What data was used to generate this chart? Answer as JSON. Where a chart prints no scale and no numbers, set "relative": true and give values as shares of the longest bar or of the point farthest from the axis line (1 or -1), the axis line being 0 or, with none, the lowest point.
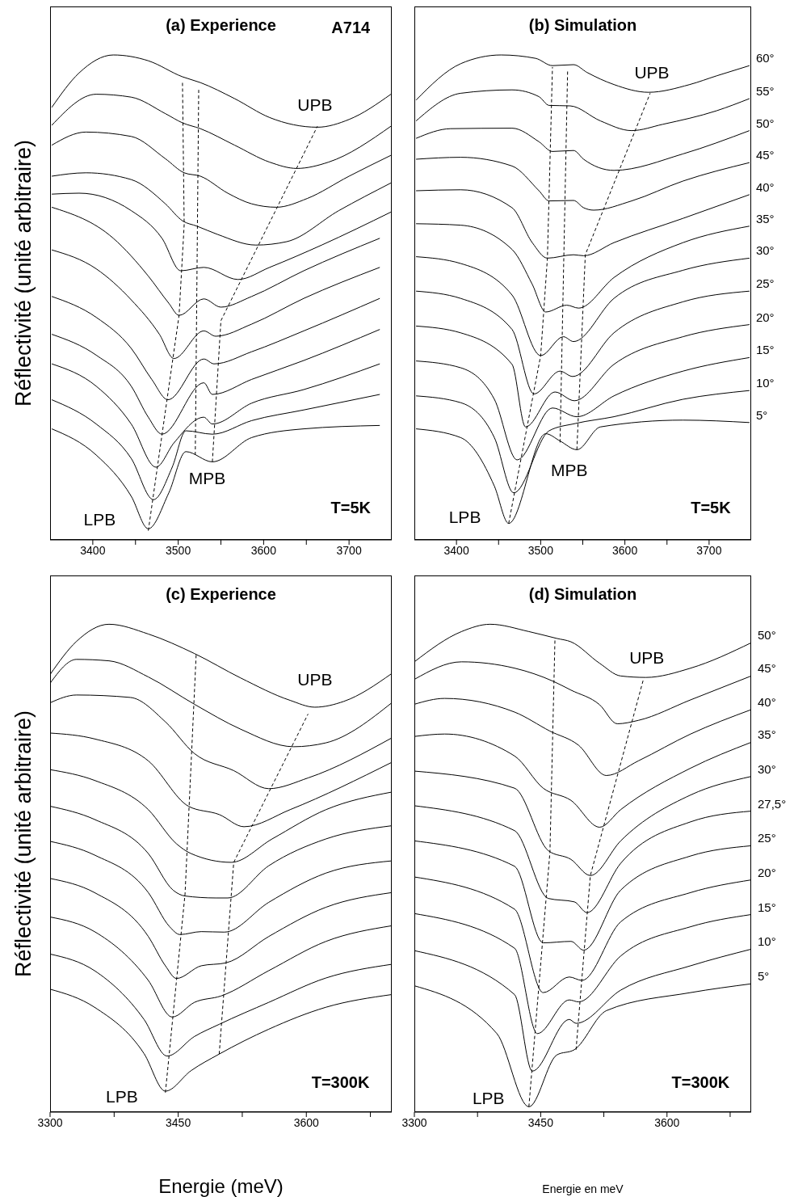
{
  "chart_data": [
    {
      "type": "line",
      "title": "(a) Experience",
      "ylabel": "Réflectivité (unité arbitraire)",
      "relative": true,
      "tick_labels": "x",
      "xlim": [
        3350,
        3750
      ],
      "xticks": [
        3400,
        {
          "value": 3450,
          "label": null
        },
        3500,
        {
          "value": 3550,
          "label": null
        },
        3600,
        {
          "value": 3650,
          "label": null
        },
        3700
      ],
      "annotations": [
        "T=5K",
        "A714",
        "UPB",
        "MPB",
        "LPB"
      ],
      "series": [
        {
          "color": "#000000",
          "x": [
            3352,
            3384,
            3424,
            3465,
            3505,
            3526,
            3566,
            3607,
            3663,
            3700,
            3749
          ],
          "values": [
            0.892,
            0.963,
            1,
            0.988,
            0.955,
            0.943,
            0.91,
            0.871,
            0.851,
            0.867,
            0.919
          ]
        },
        {
          "color": "#000000",
          "x": [
            3352,
            3404,
            3445,
            3485,
            3505,
            3526,
            3566,
            3607,
            3639,
            3676,
            3749
          ],
          "values": [
            0.855,
            0.919,
            0.913,
            0.879,
            0.86,
            0.848,
            0.814,
            0.779,
            0.766,
            0.779,
            0.853
          ]
        },
        {
          "color": "#000000",
          "x": [
            3352,
            3392,
            3445,
            3485,
            3507,
            3526,
            3558,
            3586,
            3615,
            3651,
            3700,
            3749
          ],
          "values": [
            0.814,
            0.841,
            0.832,
            0.786,
            0.757,
            0.75,
            0.715,
            0.693,
            0.686,
            0.704,
            0.75,
            0.793
          ]
        },
        {
          "color": "#000000",
          "x": [
            3352,
            3392,
            3445,
            3485,
            3505,
            3522,
            3546,
            3591,
            3627,
            3688,
            3749
          ],
          "values": [
            0.75,
            0.757,
            0.743,
            0.693,
            0.658,
            0.647,
            0.63,
            0.608,
            0.615,
            0.679,
            0.736
          ]
        },
        {
          "color": "#000000",
          "x": [
            3352,
            3384,
            3445,
            3481,
            3503,
            3530,
            3570,
            3607,
            3668,
            3749
          ],
          "values": [
            0.713,
            0.715,
            0.679,
            0.622,
            0.555,
            0.562,
            0.537,
            0.562,
            0.608,
            0.676
          ]
        },
        {
          "color": "#000000",
          "x": [
            3352,
            3424,
            3465,
            3489,
            3501,
            3530,
            3550,
            3586,
            3647,
            3736
          ],
          "values": [
            0.686,
            0.622,
            0.544,
            0.488,
            0.463,
            0.497,
            0.48,
            0.502,
            0.555,
            0.622
          ]
        },
        {
          "color": "#000000",
          "x": [
            3352,
            3404,
            3445,
            3478,
            3495,
            3530,
            3544,
            3586,
            3647,
            3736
          ],
          "values": [
            0.598,
            0.559,
            0.495,
            0.424,
            0.374,
            0.431,
            0.42,
            0.445,
            0.498,
            0.562
          ]
        },
        {
          "color": "#000000",
          "x": [
            3352,
            3404,
            3445,
            3469,
            3488,
            3530,
            3542,
            3586,
            3647,
            3736
          ],
          "values": [
            0.502,
            0.459,
            0.395,
            0.331,
            0.289,
            0.373,
            0.363,
            0.388,
            0.431,
            0.498
          ]
        },
        {
          "color": "#000000",
          "x": [
            3352,
            3404,
            3445,
            3465,
            3481,
            3530,
            3540,
            3586,
            3647,
            3736
          ],
          "values": [
            0.424,
            0.381,
            0.317,
            0.253,
            0.218,
            0.324,
            0.3,
            0.331,
            0.37,
            0.434
          ]
        },
        {
          "color": "#000000",
          "x": [
            3352,
            3404,
            3445,
            3474,
            3495,
            3530,
            3540,
            3586,
            3647,
            3736
          ],
          "values": [
            0.363,
            0.317,
            0.239,
            0.15,
            0.2,
            0.253,
            0.239,
            0.282,
            0.31,
            0.363
          ]
        },
        {
          "color": "#000000",
          "x": [
            3352,
            3404,
            3445,
            3471,
            3493,
            3509,
            3540,
            3586,
            3647,
            3736
          ],
          "values": [
            0.289,
            0.239,
            0.168,
            0.083,
            0.15,
            0.225,
            0.218,
            0.246,
            0.268,
            0.3
          ]
        },
        {
          "color": "#000000",
          "x": [
            3352,
            3404,
            3445,
            3465,
            3489,
            3509,
            3540,
            3586,
            3647,
            3736
          ],
          "values": [
            0.229,
            0.175,
            0.09,
            0.023,
            0.097,
            0.182,
            0.161,
            0.211,
            0.229,
            0.236
          ]
        },
        {
          "color": "#000000",
          "line_style": "dashed",
          "x": [
            3465,
            3501,
            3507,
            3505
          ],
          "values": [
            0.019,
            0.463,
            0.65,
            0.945
          ]
        },
        {
          "color": "#000000",
          "line_style": "dashed",
          "x": [
            3520,
            3524
          ],
          "values": [
            0.175,
            0.928
          ]
        },
        {
          "color": "#000000",
          "line_style": "dashed",
          "x": [
            3540,
            3550,
            3663
          ],
          "values": [
            0.161,
            0.452,
            0.853
          ]
        }
      ]
    },
    {
      "type": "line",
      "title": "(b) Simulation",
      "relative": true,
      "tick_labels": "x",
      "xlim": [
        3350,
        3750
      ],
      "xticks": [
        3400,
        {
          "value": 3450,
          "label": null
        },
        3500,
        {
          "value": 3550,
          "label": null
        },
        3600,
        {
          "value": 3650,
          "label": null
        },
        3700
      ],
      "annotations": [
        "T=5K",
        "UPB",
        "MPB",
        "LPB"
      ],
      "series": [
        {
          "name": "60°",
          "color": "#000000",
          "x": [
            3352,
            3405,
            3453,
            3494,
            3514,
            3539,
            3555,
            3587,
            3628,
            3677,
            3709,
            3748
          ],
          "values": [
            0.907,
            0.982,
            1,
            0.993,
            0.978,
            0.98,
            0.964,
            0.939,
            0.923,
            0.939,
            0.957,
            0.978
          ]
        },
        {
          "name": "55°",
          "color": "#000000",
          "x": [
            3352,
            3405,
            3466,
            3498,
            3510,
            3535,
            3571,
            3608,
            3645,
            3709,
            3748
          ],
          "values": [
            0.864,
            0.921,
            0.928,
            0.914,
            0.896,
            0.895,
            0.864,
            0.844,
            0.857,
            0.885,
            0.91
          ]
        },
        {
          "name": "50°",
          "color": "#000000",
          "x": [
            3352,
            3393,
            3466,
            3498,
            3514,
            3539,
            3551,
            3587,
            3669,
            3748
          ],
          "values": [
            0.828,
            0.848,
            0.849,
            0.821,
            0.801,
            0.803,
            0.785,
            0.762,
            0.796,
            0.844
          ]
        },
        {
          "name": "45°",
          "color": "#000000",
          "x": [
            3352,
            3405,
            3466,
            3498,
            3510,
            3539,
            3551,
            3563,
            3608,
            3669,
            3748
          ],
          "values": [
            0.785,
            0.789,
            0.771,
            0.72,
            0.699,
            0.7,
            0.685,
            0.68,
            0.699,
            0.74,
            0.778
          ]
        },
        {
          "name": "40°",
          "color": "#000000",
          "x": [
            3352,
            3405,
            3466,
            3490,
            3508,
            3539,
            3551,
            3587,
            3669,
            3748
          ],
          "values": [
            0.72,
            0.722,
            0.685,
            0.613,
            0.581,
            0.588,
            0.586,
            0.613,
            0.663,
            0.712
          ]
        },
        {
          "name": "35°",
          "color": "#000000",
          "x": [
            3352,
            3405,
            3466,
            3490,
            3506,
            3531,
            3545,
            3587,
            3669,
            3748
          ],
          "values": [
            0.652,
            0.649,
            0.599,
            0.527,
            0.47,
            0.484,
            0.478,
            0.541,
            0.613,
            0.647
          ]
        },
        {
          "name": "30°",
          "color": "#000000",
          "x": [
            3352,
            3405,
            3466,
            3500,
            3527,
            3539,
            3587,
            3669,
            3748
          ],
          "values": [
            0.584,
            0.57,
            0.505,
            0.38,
            0.419,
            0.409,
            0.498,
            0.556,
            0.581
          ]
        },
        {
          "name": "25°",
          "color": "#000000",
          "x": [
            3352,
            3405,
            3466,
            3492,
            3523,
            3538,
            3587,
            3669,
            3748
          ],
          "values": [
            0.513,
            0.498,
            0.434,
            0.301,
            0.348,
            0.337,
            0.427,
            0.491,
            0.513
          ]
        },
        {
          "name": "20°",
          "color": "#000000",
          "x": [
            3352,
            3405,
            3466,
            3482,
            3517,
            3540,
            3587,
            3669,
            3748
          ],
          "values": [
            0.441,
            0.427,
            0.362,
            0.233,
            0.305,
            0.287,
            0.362,
            0.419,
            0.444
          ]
        },
        {
          "name": "15°",
          "color": "#000000",
          "x": [
            3352,
            3405,
            3445,
            3472,
            3514,
            3543,
            3587,
            3669,
            3748
          ],
          "values": [
            0.369,
            0.355,
            0.29,
            0.165,
            0.272,
            0.254,
            0.297,
            0.348,
            0.376
          ]
        },
        {
          "name": "10°",
          "color": "#000000",
          "x": [
            3352,
            3405,
            3445,
            3468,
            3510,
            3541,
            3587,
            3669,
            3748
          ],
          "values": [
            0.297,
            0.283,
            0.211,
            0.097,
            0.225,
            0.24,
            0.254,
            0.29,
            0.308
          ]
        },
        {
          "name": "5°",
          "color": "#000000",
          "x": [
            3352,
            3405,
            3445,
            3462,
            3506,
            3523,
            3543,
            3571,
            3669,
            3748
          ],
          "values": [
            0.229,
            0.211,
            0.111,
            0.034,
            0.219,
            0.204,
            0.186,
            0.233,
            0.247,
            0.242
          ]
        },
        {
          "color": "#000000",
          "line_style": "dashed",
          "x": [
            3462,
            3500,
            3508,
            3514
          ],
          "values": [
            0.034,
            0.38,
            0.581,
            0.975
          ]
        },
        {
          "color": "#000000",
          "line_style": "dashed",
          "x": [
            3523,
            3532
          ],
          "values": [
            0.201,
            0.968
          ]
        },
        {
          "color": "#000000",
          "line_style": "dashed",
          "x": [
            3543,
            3553,
            3630
          ],
          "values": [
            0.186,
            0.588,
            0.921
          ]
        }
      ]
    },
    {
      "type": "line",
      "title": "(c) Experience",
      "xlabel": "Energie (meV)",
      "ylabel": "Réflectivité (unité arbitraire)",
      "relative": true,
      "tick_labels": "x",
      "xlim": [
        3300,
        3700
      ],
      "xticks": [
        3300,
        {
          "value": 3375,
          "label": null
        },
        3450,
        {
          "value": 3525,
          "label": null
        },
        3600,
        {
          "value": 3675,
          "label": null
        }
      ],
      "annotations": [
        "T=300K",
        "UPB",
        "LPB"
      ],
      "series": [
        {
          "color": "#000000",
          "x": [
            3300,
            3331,
            3369,
            3415,
            3469,
            3523,
            3581,
            3610,
            3644,
            3700
          ],
          "values": [
            0.897,
            0.965,
            1,
            0.98,
            0.94,
            0.89,
            0.844,
            0.83,
            0.842,
            0.899
          ]
        },
        {
          "color": "#000000",
          "x": [
            3300,
            3331,
            3369,
            3415,
            3469,
            3523,
            3585,
            3623,
            3700
          ],
          "values": [
            0.879,
            0.928,
            0.925,
            0.892,
            0.836,
            0.785,
            0.749,
            0.757,
            0.839
          ]
        },
        {
          "color": "#000000",
          "x": [
            3300,
            3331,
            3394,
            3435,
            3469,
            3515,
            3556,
            3602,
            3700
          ],
          "values": [
            0.839,
            0.855,
            0.85,
            0.8,
            0.735,
            0.7,
            0.663,
            0.685,
            0.767
          ]
        },
        {
          "color": "#000000",
          "x": [
            3300,
            3352,
            3415,
            3462,
            3498,
            3527,
            3581,
            3700
          ],
          "values": [
            0.777,
            0.765,
            0.72,
            0.627,
            0.61,
            0.585,
            0.62,
            0.717
          ]
        },
        {
          "color": "#000000",
          "x": [
            3300,
            3352,
            3415,
            3448,
            3465,
            3512,
            3560,
            3623,
            3700
          ],
          "values": [
            0.702,
            0.68,
            0.62,
            0.55,
            0.53,
            0.512,
            0.56,
            0.62,
            0.656
          ]
        },
        {
          "color": "#000000",
          "x": [
            3300,
            3352,
            3415,
            3444,
            3458,
            3494,
            3508,
            3556,
            3623,
            3700
          ],
          "values": [
            0.627,
            0.6,
            0.53,
            0.455,
            0.443,
            0.439,
            0.439,
            0.505,
            0.56,
            0.587
          ]
        },
        {
          "color": "#000000",
          "x": [
            3300,
            3352,
            3415,
            3440,
            3452,
            3477,
            3504,
            3556,
            3623,
            3700
          ],
          "values": [
            0.555,
            0.527,
            0.45,
            0.38,
            0.364,
            0.37,
            0.369,
            0.43,
            0.49,
            0.515
          ]
        },
        {
          "color": "#000000",
          "x": [
            3300,
            3352,
            3415,
            3435,
            3448,
            3477,
            3506,
            3556,
            3623,
            3700
          ],
          "values": [
            0.479,
            0.45,
            0.36,
            0.3,
            0.274,
            0.3,
            0.306,
            0.36,
            0.42,
            0.45
          ]
        },
        {
          "color": "#000000",
          "x": [
            3300,
            3352,
            3415,
            3443,
            3469,
            3500,
            3556,
            3623,
            3700
          ],
          "values": [
            0.4,
            0.37,
            0.27,
            0.195,
            0.225,
            0.238,
            0.29,
            0.35,
            0.382
          ]
        },
        {
          "color": "#000000",
          "x": [
            3300,
            3352,
            3410,
            3437,
            3469,
            3498,
            3556,
            3623,
            3700
          ],
          "values": [
            0.324,
            0.29,
            0.19,
            0.115,
            0.155,
            0.18,
            0.225,
            0.275,
            0.303
          ]
        },
        {
          "color": "#000000",
          "x": [
            3300,
            3352,
            3410,
            3435,
            3465,
            3498,
            3556,
            3623,
            3700
          ],
          "values": [
            0.252,
            0.215,
            0.12,
            0.043,
            0.085,
            0.119,
            0.17,
            0.215,
            0.241
          ]
        },
        {
          "color": "#000000",
          "line_style": "dashed",
          "x": [
            3435,
            3458,
            3471
          ],
          "values": [
            0.04,
            0.447,
            0.937
          ]
        },
        {
          "color": "#000000",
          "line_style": "dashed",
          "x": [
            3498,
            3515,
            3602
          ],
          "values": [
            0.119,
            0.512,
            0.816
          ]
        }
      ]
    },
    {
      "type": "line",
      "title": "(d) Simulation",
      "xlabel": "Energie en meV",
      "relative": true,
      "tick_labels": "x",
      "xlim": [
        3300,
        3700
      ],
      "xticks": [
        3300,
        {
          "value": 3375,
          "label": null
        },
        3450,
        {
          "value": 3525,
          "label": null
        },
        3600,
        {
          "value": 3675,
          "label": null
        }
      ],
      "annotations": [
        "T=300K",
        "UPB",
        "LPB"
      ],
      "series": [
        {
          "name": "50°",
          "color": "#000000",
          "x": [
            3300,
            3356,
            3390,
            3436,
            3469,
            3486,
            3520,
            3545,
            3575,
            3628,
            3700
          ],
          "values": [
            0.923,
            0.985,
            1,
            0.985,
            0.971,
            0.964,
            0.92,
            0.894,
            0.891,
            0.91,
            0.962
          ]
        },
        {
          "name": "45°",
          "color": "#000000",
          "x": [
            3300,
            3356,
            3419,
            3465,
            3486,
            3520,
            3541,
            3566,
            3628,
            3700
          ],
          "values": [
            0.887,
            0.923,
            0.91,
            0.883,
            0.865,
            0.835,
            0.796,
            0.803,
            0.845,
            0.894
          ]
        },
        {
          "name": "40°",
          "color": "#000000",
          "x": [
            3300,
            3336,
            3419,
            3461,
            3495,
            3528,
            3566,
            3628,
            3700
          ],
          "values": [
            0.836,
            0.848,
            0.82,
            0.781,
            0.752,
            0.69,
            0.72,
            0.775,
            0.825
          ]
        },
        {
          "name": "35°",
          "color": "#000000",
          "x": [
            3300,
            3336,
            3419,
            3453,
            3486,
            3520,
            3545,
            3628,
            3700
          ],
          "values": [
            0.77,
            0.775,
            0.73,
            0.664,
            0.639,
            0.584,
            0.62,
            0.705,
            0.758
          ]
        },
        {
          "name": "30°",
          "color": "#000000",
          "x": [
            3300,
            3419,
            3459,
            3486,
            3509,
            3545,
            3628,
            3700
          ],
          "values": [
            0.699,
            0.664,
            0.536,
            0.518,
            0.485,
            0.556,
            0.65,
            0.688
          ]
        },
        {
          "name": "27,5°",
          "color": "#000000",
          "x": [
            3300,
            3419,
            3459,
            3490,
            3505,
            3545,
            3628,
            3700
          ],
          "values": [
            0.628,
            0.577,
            0.438,
            0.431,
            0.409,
            0.51,
            0.595,
            0.617
          ]
        },
        {
          "name": "25°",
          "color": "#000000",
          "x": [
            3300,
            3419,
            3453,
            3486,
            3501,
            3545,
            3628,
            3700
          ],
          "values": [
            0.556,
            0.504,
            0.347,
            0.35,
            0.332,
            0.455,
            0.525,
            0.546
          ]
        },
        {
          "name": "20°",
          "color": "#000000",
          "x": [
            3300,
            3419,
            3453,
            3484,
            3499,
            3545,
            3628,
            3700
          ],
          "values": [
            0.482,
            0.416,
            0.245,
            0.277,
            0.27,
            0.39,
            0.45,
            0.476
          ]
        },
        {
          "name": "15°",
          "color": "#000000",
          "x": [
            3300,
            3419,
            3446,
            3484,
            3495,
            3545,
            3628,
            3700
          ],
          "values": [
            0.407,
            0.336,
            0.161,
            0.23,
            0.226,
            0.32,
            0.38,
            0.405
          ]
        },
        {
          "name": "10°",
          "color": "#000000",
          "x": [
            3300,
            3419,
            3440,
            3484,
            3492,
            3545,
            3628,
            3700
          ],
          "values": [
            0.331,
            0.241,
            0.084,
            0.19,
            0.182,
            0.25,
            0.3,
            0.334
          ]
        },
        {
          "name": "5°",
          "color": "#000000",
          "x": [
            3300,
            3398,
            3436,
            3469,
            3490,
            3528,
            3628,
            3700
          ],
          "values": [
            0.259,
            0.161,
            0.011,
            0.117,
            0.128,
            0.208,
            0.245,
            0.263
          ]
        },
        {
          "color": "#000000",
          "line_style": "dashed",
          "x": [
            3436,
            3461,
            3467
          ],
          "values": [
            0.011,
            0.533,
            0.972
          ]
        },
        {
          "color": "#000000",
          "line_style": "dashed",
          "x": [
            3492,
            3509,
            3572
          ],
          "values": [
            0.128,
            0.485,
            0.887
          ]
        }
      ]
    }
  ]
}
